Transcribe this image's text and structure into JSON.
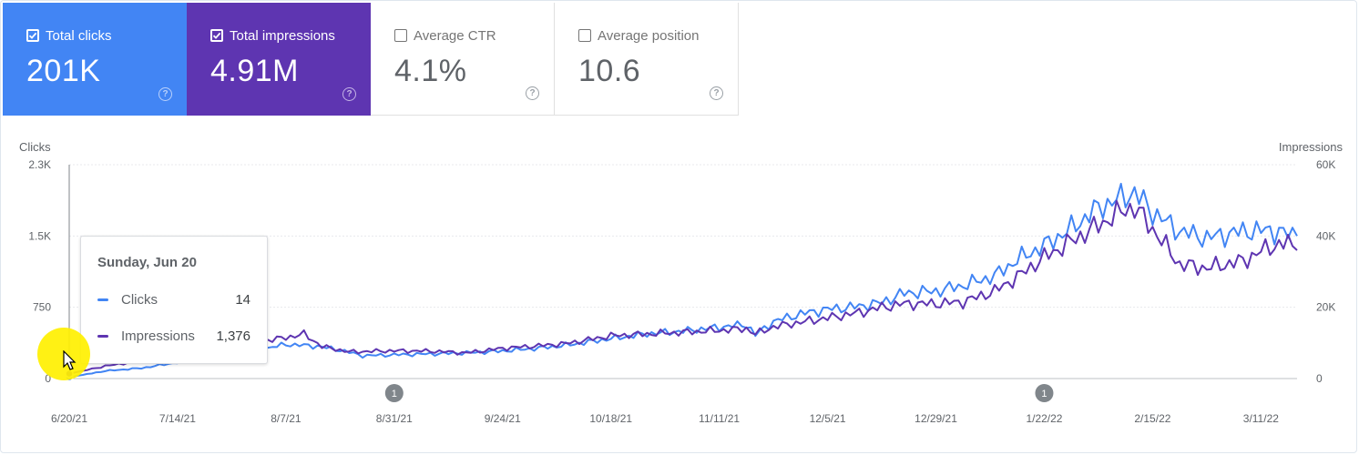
{
  "metrics": [
    {
      "label": "Total clicks",
      "value": "201K",
      "checked": true,
      "color": "#4285f4"
    },
    {
      "label": "Total impressions",
      "value": "4.91M",
      "checked": true,
      "color": "#5e35b1"
    },
    {
      "label": "Average CTR",
      "value": "4.1%",
      "checked": false
    },
    {
      "label": "Average position",
      "value": "10.6",
      "checked": false
    }
  ],
  "help_glyph": "?",
  "tooltip": {
    "date": "Sunday, Jun 20",
    "rows": [
      {
        "name": "Clicks",
        "value": "14",
        "color": "#4285f4"
      },
      {
        "name": "Impressions",
        "value": "1,376",
        "color": "#5e35b1"
      }
    ]
  },
  "annotations": [
    {
      "label": "1",
      "x": "8/31/21"
    },
    {
      "label": "1",
      "x": "1/22/22"
    }
  ],
  "chart_data": {
    "type": "line",
    "y_left_label": "Clicks",
    "y_right_label": "Impressions",
    "y_left_ticks": [
      "0",
      "750",
      "1.5K",
      "2.3K"
    ],
    "y_left_tick_values": [
      0,
      750,
      1500,
      2250
    ],
    "y_right_ticks": [
      "0",
      "20K",
      "40K",
      "60K"
    ],
    "y_right_tick_values": [
      0,
      20000,
      40000,
      60000
    ],
    "x_ticks": [
      "6/20/21",
      "7/14/21",
      "8/7/21",
      "8/31/21",
      "9/24/21",
      "10/18/21",
      "11/11/21",
      "12/5/21",
      "12/29/21",
      "1/22/22",
      "2/15/22",
      "3/11/22"
    ],
    "x_tick_days": [
      0,
      24,
      48,
      72,
      96,
      120,
      144,
      168,
      192,
      216,
      240,
      264
    ],
    "x_range_days": [
      0,
      272
    ],
    "grid": true,
    "series": [
      {
        "name": "Clicks",
        "axis": "left",
        "color": "#4285f4",
        "points": [
          [
            0,
            14
          ],
          [
            8,
            80
          ],
          [
            16,
            110
          ],
          [
            24,
            170
          ],
          [
            32,
            230
          ],
          [
            40,
            290
          ],
          [
            45,
            330
          ],
          [
            48,
            360
          ],
          [
            55,
            340
          ],
          [
            60,
            300
          ],
          [
            65,
            240
          ],
          [
            72,
            250
          ],
          [
            80,
            260
          ],
          [
            88,
            270
          ],
          [
            96,
            290
          ],
          [
            104,
            320
          ],
          [
            110,
            350
          ],
          [
            120,
            420
          ],
          [
            128,
            470
          ],
          [
            136,
            500
          ],
          [
            144,
            540
          ],
          [
            150,
            570
          ],
          [
            152,
            460
          ],
          [
            156,
            600
          ],
          [
            162,
            680
          ],
          [
            168,
            730
          ],
          [
            175,
            760
          ],
          [
            180,
            800
          ],
          [
            185,
            900
          ],
          [
            192,
            920
          ],
          [
            198,
            980
          ],
          [
            205,
            1080
          ],
          [
            210,
            1250
          ],
          [
            216,
            1400
          ],
          [
            222,
            1580
          ],
          [
            228,
            1800
          ],
          [
            234,
            1920
          ],
          [
            236,
            1960
          ],
          [
            240,
            1750
          ],
          [
            246,
            1550
          ],
          [
            252,
            1480
          ],
          [
            260,
            1550
          ],
          [
            266,
            1560
          ],
          [
            272,
            1500
          ]
        ]
      },
      {
        "name": "Impressions",
        "axis": "right",
        "color": "#5e35b1",
        "points": [
          [
            0,
            1376
          ],
          [
            8,
            3500
          ],
          [
            16,
            5000
          ],
          [
            24,
            6500
          ],
          [
            32,
            8000
          ],
          [
            40,
            10000
          ],
          [
            48,
            11500
          ],
          [
            52,
            12500
          ],
          [
            56,
            9000
          ],
          [
            62,
            7500
          ],
          [
            72,
            7800
          ],
          [
            80,
            7700
          ],
          [
            88,
            7200
          ],
          [
            96,
            8500
          ],
          [
            104,
            9200
          ],
          [
            110,
            9800
          ],
          [
            120,
            12000
          ],
          [
            128,
            12500
          ],
          [
            136,
            13000
          ],
          [
            144,
            13500
          ],
          [
            150,
            14000
          ],
          [
            152,
            12500
          ],
          [
            156,
            14500
          ],
          [
            162,
            15800
          ],
          [
            168,
            17000
          ],
          [
            175,
            18500
          ],
          [
            180,
            20000
          ],
          [
            185,
            21000
          ],
          [
            192,
            21000
          ],
          [
            198,
            21500
          ],
          [
            205,
            24500
          ],
          [
            210,
            28500
          ],
          [
            216,
            34000
          ],
          [
            222,
            38500
          ],
          [
            228,
            43000
          ],
          [
            234,
            47500
          ],
          [
            236,
            48000
          ],
          [
            240,
            42000
          ],
          [
            246,
            32000
          ],
          [
            252,
            31000
          ],
          [
            260,
            33000
          ],
          [
            266,
            37000
          ],
          [
            270,
            38000
          ],
          [
            272,
            36000
          ]
        ]
      }
    ],
    "selected_point": {
      "x": "6/20/21",
      "clicks": 14,
      "impressions": 1376
    }
  }
}
